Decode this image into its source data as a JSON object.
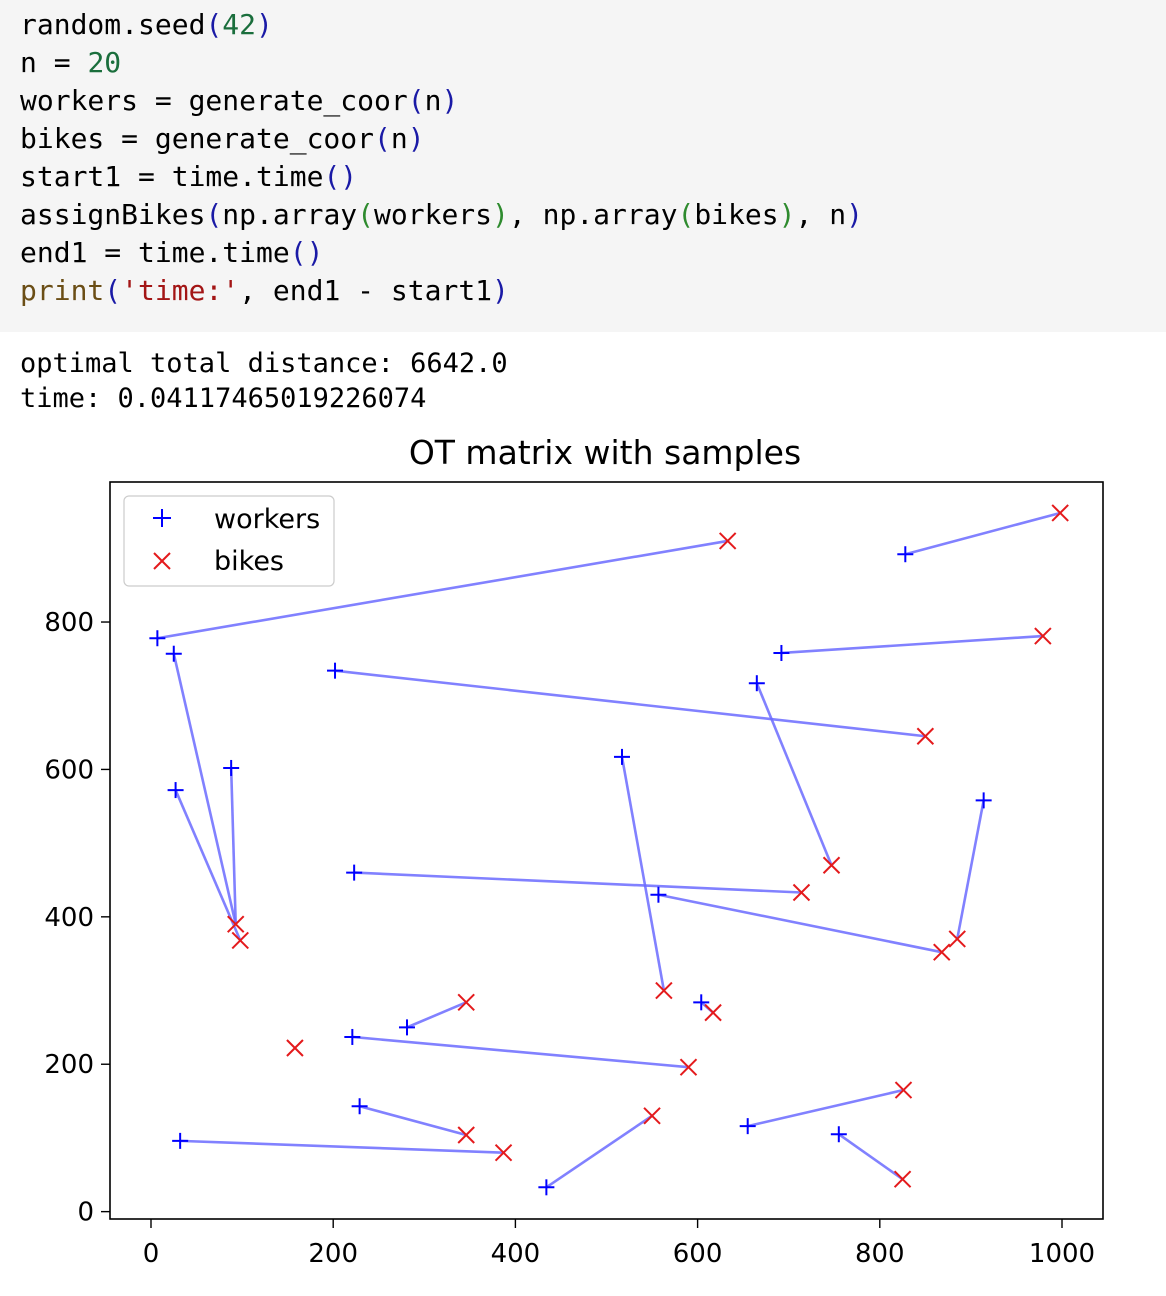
{
  "code": {
    "lines": [
      [
        {
          "t": "random.seed"
        },
        {
          "t": "(",
          "c": "par"
        },
        {
          "t": "42",
          "c": "num"
        },
        {
          "t": ")",
          "c": "par"
        }
      ],
      [
        {
          "t": "n = "
        },
        {
          "t": "20",
          "c": "num"
        }
      ],
      [
        {
          "t": "workers = generate_coor"
        },
        {
          "t": "(",
          "c": "par"
        },
        {
          "t": "n"
        },
        {
          "t": ")",
          "c": "par"
        }
      ],
      [
        {
          "t": "bikes = generate_coor"
        },
        {
          "t": "(",
          "c": "par"
        },
        {
          "t": "n"
        },
        {
          "t": ")",
          "c": "par"
        }
      ],
      [
        {
          "t": "start1 = time.time"
        },
        {
          "t": "()",
          "c": "par"
        }
      ],
      [
        {
          "t": "assignBikes"
        },
        {
          "t": "(",
          "c": "par"
        },
        {
          "t": "np.array"
        },
        {
          "t": "(",
          "c": "par2"
        },
        {
          "t": "workers"
        },
        {
          "t": ")",
          "c": "par2"
        },
        {
          "t": ", np.array"
        },
        {
          "t": "(",
          "c": "par2"
        },
        {
          "t": "bikes"
        },
        {
          "t": ")",
          "c": "par2"
        },
        {
          "t": ", n"
        },
        {
          "t": ")",
          "c": "par"
        }
      ],
      [
        {
          "t": "end1 = time.time"
        },
        {
          "t": "()",
          "c": "par"
        }
      ],
      [
        {
          "t": "print",
          "c": "kw"
        },
        {
          "t": "(",
          "c": "par"
        },
        {
          "t": "'time:'",
          "c": "str"
        },
        {
          "t": ", end1 - start1"
        },
        {
          "t": ")",
          "c": "par"
        }
      ]
    ]
  },
  "output": {
    "lines": [
      "optimal total distance: 6642.0",
      "time: 0.04117465019226074"
    ]
  },
  "chart_data": {
    "type": "scatter",
    "title": "OT matrix with samples",
    "xlim": [
      -45,
      1045
    ],
    "ylim": [
      -10,
      990
    ],
    "xticks": [
      0,
      200,
      400,
      600,
      800,
      1000
    ],
    "yticks": [
      0,
      200,
      400,
      600,
      800
    ],
    "legend": {
      "position": "top-left",
      "entries": [
        {
          "name": "workers",
          "marker": "+",
          "color": "#0000ff"
        },
        {
          "name": "bikes",
          "marker": "x",
          "color": "#e41a1c"
        }
      ]
    },
    "line_color": "#6b6bff",
    "workers": [
      [
        7,
        778
      ],
      [
        25,
        757
      ],
      [
        202,
        734
      ],
      [
        27,
        572
      ],
      [
        88,
        602
      ],
      [
        828,
        892
      ],
      [
        692,
        758
      ],
      [
        665,
        717
      ],
      [
        517,
        617
      ],
      [
        914,
        558
      ],
      [
        223,
        460
      ],
      [
        557,
        430
      ],
      [
        604,
        284
      ],
      [
        281,
        250
      ],
      [
        221,
        237
      ],
      [
        229,
        143
      ],
      [
        32,
        96
      ],
      [
        434,
        33
      ],
      [
        655,
        116
      ],
      [
        755,
        105
      ]
    ],
    "bikes": [
      [
        633,
        910
      ],
      [
        998,
        948
      ],
      [
        979,
        781
      ],
      [
        850,
        645
      ],
      [
        747,
        470
      ],
      [
        714,
        433
      ],
      [
        885,
        370
      ],
      [
        868,
        352
      ],
      [
        93,
        390
      ],
      [
        98,
        368
      ],
      [
        158,
        222
      ],
      [
        563,
        300
      ],
      [
        617,
        270
      ],
      [
        346,
        284
      ],
      [
        590,
        196
      ],
      [
        346,
        104
      ],
      [
        387,
        80
      ],
      [
        550,
        130
      ],
      [
        826,
        165
      ],
      [
        825,
        44
      ]
    ],
    "links": [
      [
        0,
        0
      ],
      [
        1,
        8
      ],
      [
        2,
        3
      ],
      [
        3,
        9
      ],
      [
        4,
        8
      ],
      [
        5,
        1
      ],
      [
        6,
        2
      ],
      [
        7,
        4
      ],
      [
        8,
        11
      ],
      [
        9,
        6
      ],
      [
        10,
        5
      ],
      [
        11,
        7
      ],
      [
        12,
        12
      ],
      [
        13,
        13
      ],
      [
        14,
        14
      ],
      [
        15,
        15
      ],
      [
        16,
        16
      ],
      [
        17,
        17
      ],
      [
        18,
        18
      ],
      [
        19,
        19
      ]
    ]
  }
}
